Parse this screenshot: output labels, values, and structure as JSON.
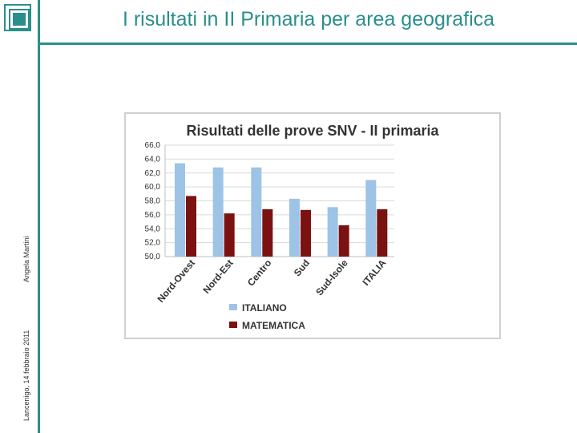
{
  "slide": {
    "title": "I risultati in II Primaria per area geografica",
    "footer_date": "Lancenigo, 14 febbraio 2011",
    "footer_author": "Angela Martini"
  },
  "colors": {
    "accent": "#2a8f8c",
    "italiano": "#9dc3e6",
    "matematica": "#7b1111"
  },
  "chart_data": {
    "type": "bar",
    "title": "Risultati delle prove SNV - II primaria",
    "categories": [
      "Nord-Ovest",
      "Nord-Est",
      "Centro",
      "Sud",
      "Sud-Isole",
      "ITALIA"
    ],
    "series": [
      {
        "name": "ITALIANO",
        "values": [
          63.4,
          62.8,
          62.8,
          58.3,
          57.1,
          61.0
        ]
      },
      {
        "name": "MATEMATICA",
        "values": [
          58.7,
          56.2,
          56.8,
          56.7,
          54.5,
          56.8
        ]
      }
    ],
    "ylim": [
      50,
      66
    ],
    "yticks": [
      "50,0",
      "52,0",
      "54,0",
      "56,0",
      "58,0",
      "60,0",
      "62,0",
      "64,0",
      "66,0"
    ],
    "grid": true,
    "legend_position": "bottom"
  }
}
